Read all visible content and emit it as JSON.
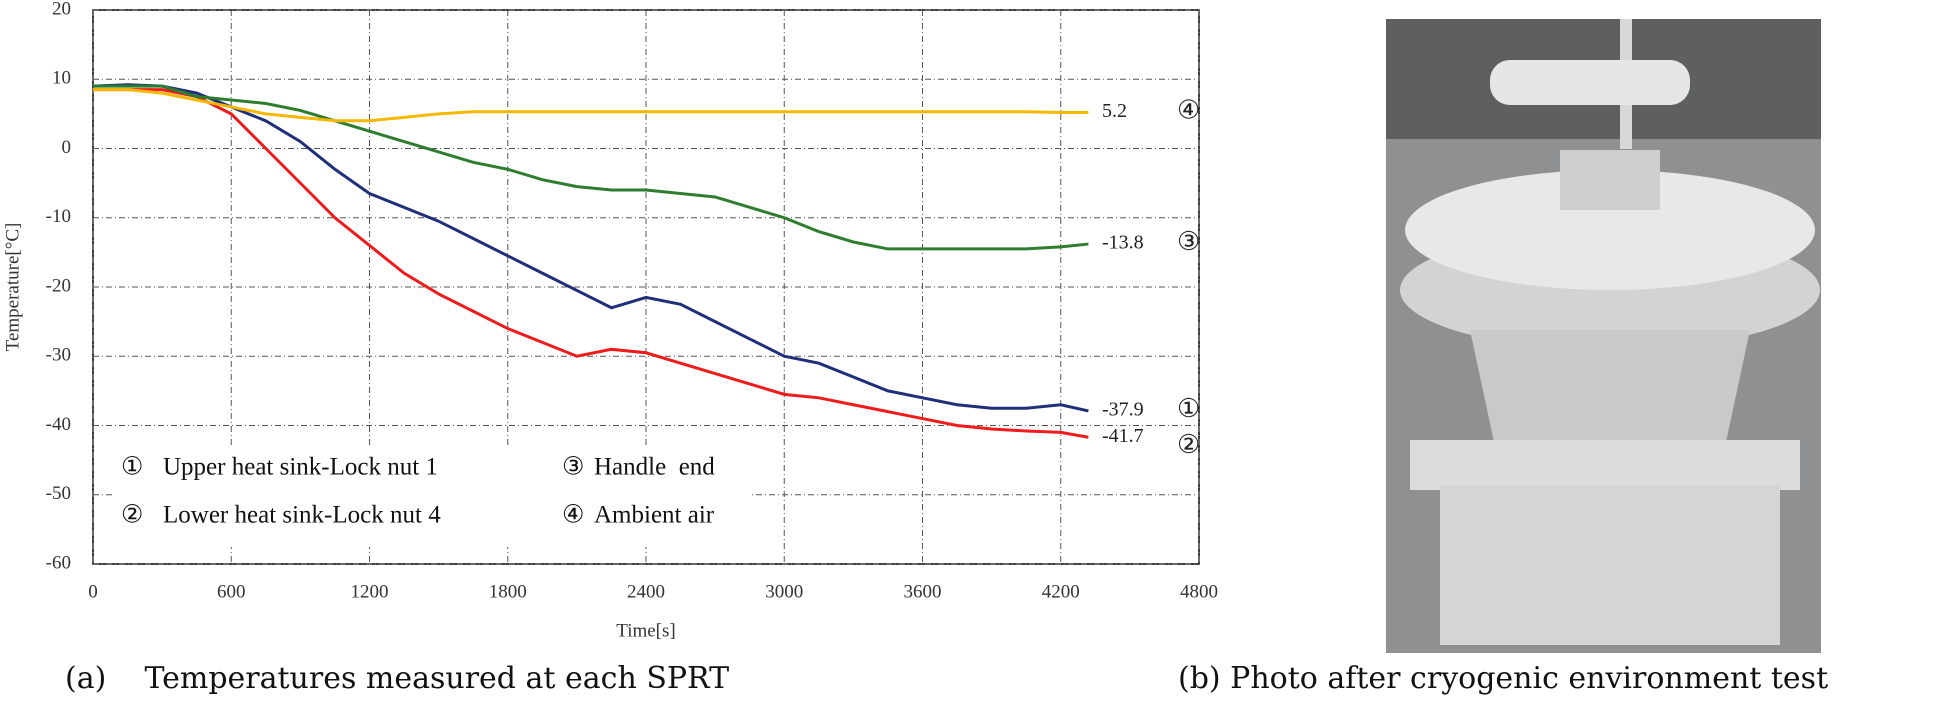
{
  "chart_data": {
    "type": "line",
    "ylabel": "Temperature[°C]",
    "xlabel": "Time[s]",
    "xlim": [
      0,
      4800
    ],
    "xticks": [
      0,
      600,
      1200,
      1800,
      2400,
      3000,
      3600,
      4200,
      4800
    ],
    "ylim": [
      -60,
      20
    ],
    "yticks": [
      20,
      10,
      0,
      -10,
      -20,
      -30,
      -40,
      -50,
      -60
    ],
    "grid": true,
    "x": [
      0,
      150,
      300,
      450,
      600,
      750,
      900,
      1050,
      1200,
      1350,
      1500,
      1650,
      1800,
      1950,
      2100,
      2250,
      2400,
      2550,
      2700,
      2850,
      3000,
      3150,
      3300,
      3450,
      3600,
      3750,
      3900,
      4050,
      4200,
      4320
    ],
    "series": [
      {
        "name": "Upper heat sink-Lock nut 1",
        "marker": "①",
        "color": "#1f2f7a",
        "end_label": "-37.9",
        "values": [
          9,
          9.2,
          9,
          8,
          6,
          4,
          1,
          -3,
          -6.5,
          -8.5,
          -10.5,
          -13,
          -15.5,
          -18,
          -20.5,
          -23,
          -21.5,
          -22.5,
          -25,
          -27.5,
          -30,
          -31,
          -33,
          -35,
          -36,
          -37,
          -37.5,
          -37.5,
          -37,
          -37.9
        ]
      },
      {
        "name": "Lower heat sink-Lock nut 4",
        "marker": "②",
        "color": "#ee1c1c",
        "end_label": "-41.7",
        "values": [
          8.5,
          8.5,
          8.5,
          7.5,
          5,
          0,
          -5,
          -10,
          -14,
          -18,
          -21,
          -23.5,
          -26,
          -28,
          -30,
          -29,
          -29.5,
          -31,
          -32.5,
          -34,
          -35.5,
          -36,
          -37,
          -38,
          -39,
          -40,
          -40.5,
          -40.8,
          -41,
          -41.7
        ]
      },
      {
        "name": "Handle  end",
        "marker": "③",
        "color": "#2e7d2e",
        "end_label": "-13.8",
        "values": [
          9,
          9,
          9,
          7.5,
          7,
          6.5,
          5.5,
          4,
          2.5,
          1,
          -0.5,
          -2,
          -3,
          -4.5,
          -5.5,
          -6,
          -6,
          -6.5,
          -7,
          -8.5,
          -10,
          -12,
          -13.5,
          -14.5,
          -14.5,
          -14.5,
          -14.5,
          -14.5,
          -14.2,
          -13.8
        ]
      },
      {
        "name": "Ambient air",
        "marker": "④",
        "color": "#f5b800",
        "end_label": "5.2",
        "values": [
          8.5,
          8.5,
          8,
          7,
          6,
          5,
          4.5,
          4,
          4,
          4.5,
          5,
          5.3,
          5.3,
          5.3,
          5.3,
          5.3,
          5.3,
          5.3,
          5.3,
          5.3,
          5.3,
          5.3,
          5.3,
          5.3,
          5.3,
          5.3,
          5.3,
          5.3,
          5.2,
          5.2
        ]
      }
    ]
  },
  "captions": [
    "(a)    Temperatures measured at each SPRT",
    "(b) Photo after cryogenic environment test"
  ]
}
